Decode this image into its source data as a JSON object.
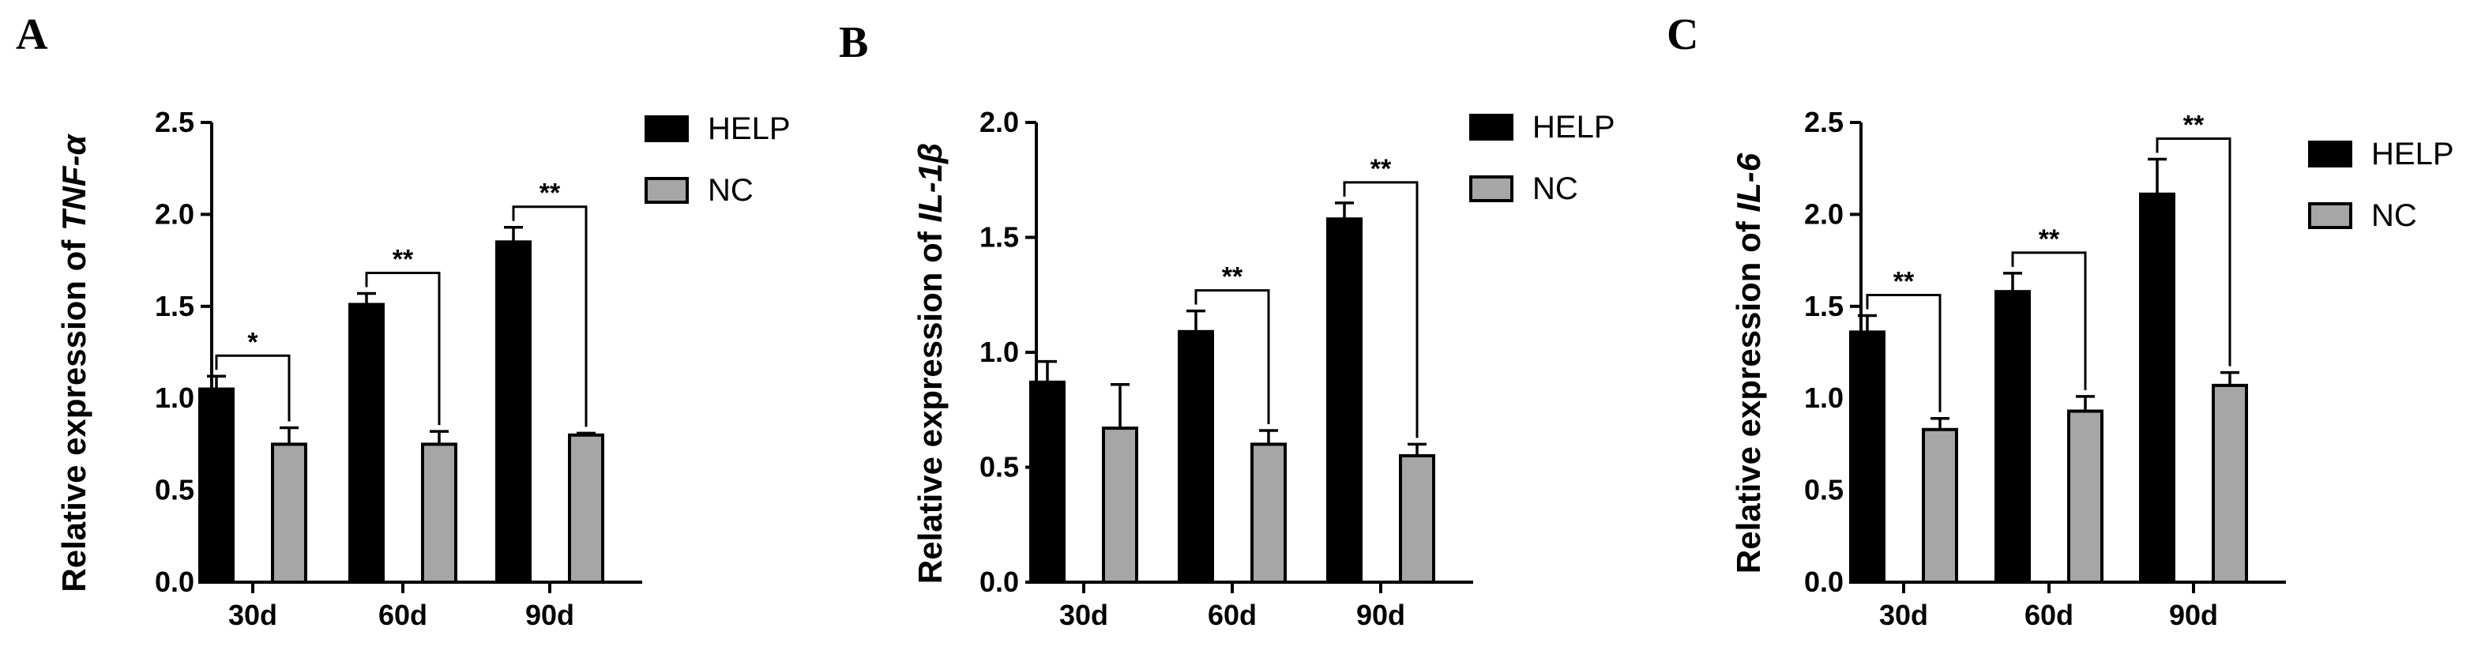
{
  "chart_data": [
    {
      "type": "bar",
      "panel_label": "A",
      "ylabel_prefix": "Relative expression of ",
      "ylabel_gene": "TNF-α",
      "categories": [
        "30d",
        "60d",
        "90d"
      ],
      "ylim": [
        0,
        2.5
      ],
      "yticks": [
        "0.0",
        "0.5",
        "1.0",
        "1.5",
        "2.0",
        "2.5"
      ],
      "ytick_values": [
        0,
        0.5,
        1.0,
        1.5,
        2.0,
        2.5
      ],
      "series": [
        {
          "name": "HELP",
          "color": "#000000",
          "values": [
            1.05,
            1.51,
            1.85
          ],
          "errors": [
            0.07,
            0.06,
            0.08
          ]
        },
        {
          "name": "NC",
          "color": "#a6a6a6",
          "values": [
            0.75,
            0.75,
            0.8
          ],
          "errors": [
            0.09,
            0.07,
            0.01
          ]
        }
      ],
      "significance": [
        "*",
        "**",
        "**"
      ],
      "legend": {
        "position": "top-right"
      },
      "grid": false
    },
    {
      "type": "bar",
      "panel_label": "B",
      "ylabel_prefix": "Relative expression of ",
      "ylabel_gene": "IL-1β",
      "categories": [
        "30d",
        "60d",
        "90d"
      ],
      "ylim": [
        0,
        2.0
      ],
      "yticks": [
        "0.0",
        "0.5",
        "1.0",
        "1.5",
        "2.0"
      ],
      "ytick_values": [
        0,
        0.5,
        1.0,
        1.5,
        2.0
      ],
      "series": [
        {
          "name": "HELP",
          "color": "#000000",
          "values": [
            0.87,
            1.09,
            1.58
          ],
          "errors": [
            0.09,
            0.09,
            0.07
          ]
        },
        {
          "name": "NC",
          "color": "#a6a6a6",
          "values": [
            0.67,
            0.6,
            0.55
          ],
          "errors": [
            0.19,
            0.06,
            0.05
          ]
        }
      ],
      "significance": [
        "",
        "**",
        "**"
      ],
      "legend": {
        "position": "top-right"
      },
      "grid": false
    },
    {
      "type": "bar",
      "panel_label": "C",
      "ylabel_prefix": "Relative expression of ",
      "ylabel_gene": "IL-6",
      "categories": [
        "30d",
        "60d",
        "90d"
      ],
      "ylim": [
        0,
        2.5
      ],
      "yticks": [
        "0.0",
        "0.5",
        "1.0",
        "1.5",
        "2.0",
        "2.5"
      ],
      "ytick_values": [
        0,
        0.5,
        1.0,
        1.5,
        2.0,
        2.5
      ],
      "series": [
        {
          "name": "HELP",
          "color": "#000000",
          "values": [
            1.36,
            1.58,
            2.11
          ],
          "errors": [
            0.09,
            0.1,
            0.19
          ]
        },
        {
          "name": "NC",
          "color": "#a6a6a6",
          "values": [
            0.83,
            0.93,
            1.07
          ],
          "errors": [
            0.06,
            0.08,
            0.07
          ]
        }
      ],
      "significance": [
        "**",
        "**",
        "**"
      ],
      "legend": {
        "position": "top-right"
      },
      "grid": false
    }
  ]
}
